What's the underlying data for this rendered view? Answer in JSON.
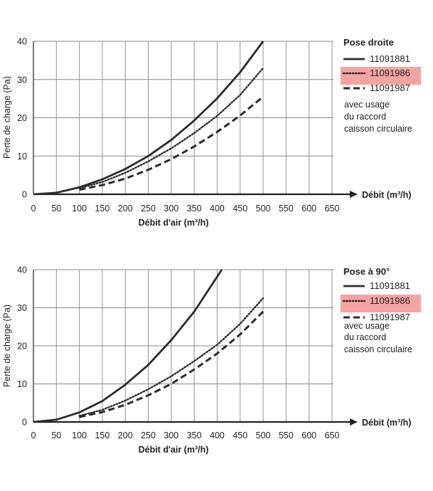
{
  "chart_data": [
    {
      "type": "line",
      "title": "Pose droite",
      "xlabel": "Débit d'air (m³/h)",
      "xlabel_arrow": "Débit (m³/h)",
      "ylabel": "Perte de charge (Pa)",
      "xlim": [
        0,
        650
      ],
      "ylim": [
        0,
        40
      ],
      "x_ticks": [
        "0",
        "50",
        "100",
        "150",
        "200",
        "250",
        "300",
        "350",
        "400",
        "450",
        "500",
        "550",
        "600",
        "650"
      ],
      "y_ticks": [
        "0",
        "10",
        "20",
        "30",
        "40"
      ],
      "grid": true,
      "legend_position": "right",
      "legend_note": [
        "avec usage",
        "du raccord",
        "caisson circulaire"
      ],
      "highlight_color": "#f5a3a3",
      "series": [
        {
          "name": "11091881",
          "style": "solid",
          "highlighted": false,
          "x": [
            0,
            50,
            100,
            150,
            200,
            250,
            300,
            350,
            400,
            450,
            500
          ],
          "y": [
            0,
            0.4,
            1.8,
            3.9,
            6.6,
            10.0,
            14.2,
            19.3,
            25.1,
            31.9,
            40.0
          ]
        },
        {
          "name": "11091986",
          "style": "dotted",
          "highlighted": true,
          "x": [
            100,
            150,
            200,
            250,
            300,
            350,
            400,
            450,
            500
          ],
          "y": [
            1.6,
            3.2,
            5.6,
            8.6,
            12.0,
            16.0,
            20.5,
            26.0,
            33.0
          ]
        },
        {
          "name": "11091987",
          "style": "dashed",
          "highlighted": false,
          "x": [
            100,
            150,
            200,
            250,
            300,
            350,
            400,
            450,
            500
          ],
          "y": [
            1.2,
            2.4,
            4.1,
            6.4,
            9.2,
            12.5,
            16.3,
            20.6,
            25.5
          ]
        }
      ]
    },
    {
      "type": "line",
      "title": "Pose à 90°",
      "xlabel": "Débit d'air (m³/h)",
      "xlabel_arrow": "Débit (m³/h)",
      "ylabel": "Perte de charge (Pa)",
      "xlim": [
        0,
        650
      ],
      "ylim": [
        0,
        40
      ],
      "x_ticks": [
        "0",
        "50",
        "100",
        "150",
        "200",
        "250",
        "300",
        "350",
        "400",
        "450",
        "500",
        "550",
        "600",
        "650"
      ],
      "y_ticks": [
        "0",
        "10",
        "20",
        "30",
        "40"
      ],
      "grid": true,
      "legend_position": "right",
      "legend_note": [
        "avec usage",
        "du raccord",
        "caisson circulaire"
      ],
      "highlight_color": "#f5a3a3",
      "series": [
        {
          "name": "11091881",
          "style": "solid",
          "highlighted": false,
          "x": [
            0,
            50,
            100,
            150,
            200,
            250,
            300,
            350,
            410
          ],
          "y": [
            0,
            0.6,
            2.5,
            5.5,
            9.8,
            15.0,
            21.5,
            29.0,
            40.0
          ]
        },
        {
          "name": "11091986",
          "style": "dotted",
          "highlighted": true,
          "x": [
            100,
            150,
            200,
            250,
            300,
            350,
            400,
            450,
            500
          ],
          "y": [
            1.6,
            3.2,
            5.6,
            8.6,
            12.0,
            16.0,
            20.3,
            25.8,
            32.5
          ]
        },
        {
          "name": "11091987",
          "style": "dashed",
          "highlighted": false,
          "x": [
            100,
            150,
            200,
            250,
            300,
            350,
            400,
            450,
            500
          ],
          "y": [
            1.3,
            2.6,
            4.5,
            7.0,
            10.0,
            13.8,
            18.0,
            23.0,
            29.0
          ]
        }
      ]
    }
  ]
}
